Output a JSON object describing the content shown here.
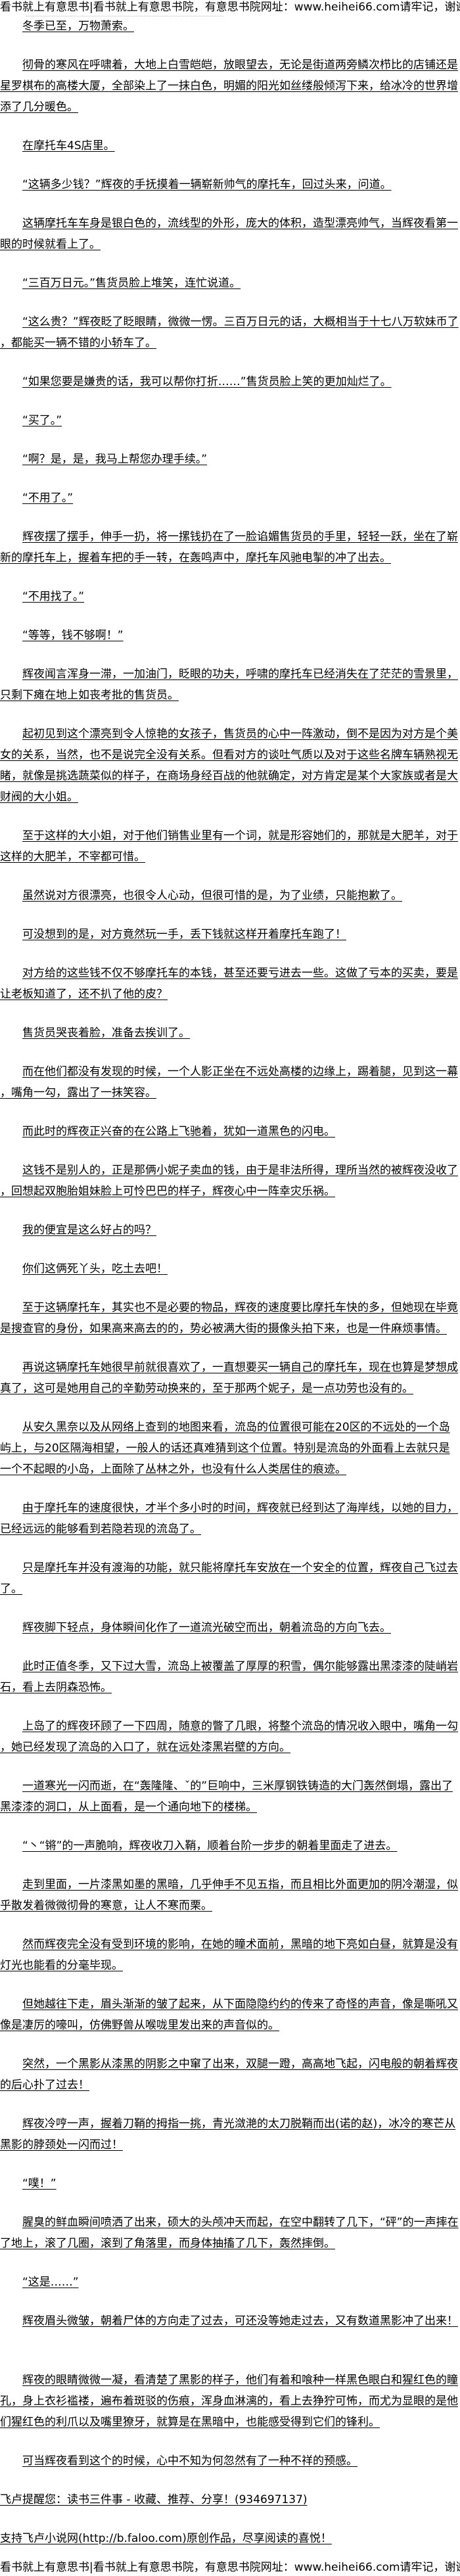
{
  "header": {
    "notice": "看书就上有意思书|看书就上有意思书院，有意思书院网址：www.heihei66.com请牢记，谢谢"
  },
  "paragraphs": [
    {
      "text": "冬季已至，万物萧索。"
    },
    {
      "text": "彻骨的寒风在呼啸着，大地上白雪皑皑，放眼望去，无论是街道两旁鳞次栉比的店铺还是星罗棋布的高楼大厦，全部染上了一抹白色，明媚的阳光如丝缕般倾泻下来，给冰冷的世界增添了几分暖色。"
    },
    {
      "text": "在摩托车4S店里。"
    },
    {
      "text": "“这辆多少钱？”辉夜的手抚摸着一辆崭新帅气的摩托车，回过头来，问道。"
    },
    {
      "text": "这辆摩托车车身是银白色的，流线型的外形，庞大的体积，造型漂亮帅气，当辉夜看第一眼的时候就看上了。"
    },
    {
      "text": "“三百万日元。”售货员脸上堆笑，连忙说道。"
    },
    {
      "text": "“这么贵？”辉夜眨了眨眼睛，微微一愣。三百万日元的话，大概相当于十七八万软妹币了，都能买一辆不错的小轿车了。"
    },
    {
      "text": "“如果您要是嫌贵的话，我可以帮你打折……”售货员脸上笑的更加灿烂了。"
    },
    {
      "text": "“买了。”"
    },
    {
      "text": "“啊？是，是，我马上帮您办理手续。”"
    },
    {
      "text": "“不用了。”"
    },
    {
      "text": "辉夜摆了摆手，伸手一扔，将一摞钱扔在了一脸谄媚售货员的手里，轻轻一跃，坐在了崭新的摩托车上，握着车把的手一转，在轰鸣声中，摩托车风驰电掣的冲了出去。"
    },
    {
      "text": "“不用找了。”"
    },
    {
      "text": "“等等，钱不够啊！”"
    },
    {
      "text": "辉夜闻言浑身一滞，一加油门，眨眼的功夫，呼啸的摩托车已经消失在了茫茫的雪景里，只剩下瘫在地上如丧考批的售货员。"
    },
    {
      "text": "起初见到这个漂亮到令人惊艳的女孩子，售货员的心中一阵激动，倒不是因为对方是个美女的关系，当然，也不是说完全没有关系。但看对方的谈吐气质以及对于这些名牌车辆熟视无睹，就像是挑选蔬菜似的样子，在商场身经百战的他就确定，对方肯定是某个大家族或者是大财阀的大小姐。"
    },
    {
      "text": "至于这样的大小姐，对于他们销售业里有一个词，就是形容她们的，那就是大肥羊，对于这样的大肥羊，不宰都可惜。"
    },
    {
      "text": "虽然说对方很漂亮，也很令人心动，但很可惜的是，为了业绩，只能抱歉了。"
    },
    {
      "text": "可没想到的是，对方竟然玩一手，丢下钱就这样开着摩托车跑了！"
    },
    {
      "text": "对方给的这些钱不仅不够摩托车的本钱，甚至还要亏进去一些。这做了亏本的买卖，要是让老板知道了，还不扒了他的皮？"
    },
    {
      "text": "售货员哭丧着脸，准备去挨训了。"
    },
    {
      "text": "而在他们都没有发现的时候，一个人影正坐在不远处高楼的边缘上，踢着腿，见到这一幕，嘴角一勾，露出了一抹笑容。"
    },
    {
      "text": "而此时的辉夜正兴奋的在公路上飞驰着，犹如一道黑色的闪电。"
    },
    {
      "text": "这钱不是别人的，正是那俩小妮子卖血的钱，由于是非法所得，理所当然的被辉夜没收了，回想起双胞胎姐妹脸上可怜巴巴的样子，辉夜心中一阵幸灾乐祸。"
    },
    {
      "text": "我的便宜是这么好占的吗？"
    },
    {
      "text": "你们这俩死丫头，吃土去吧！"
    },
    {
      "text": "至于这辆摩托车，其实也不是必要的物品，辉夜的速度要比摩托车快的多，但她现在毕竟是搜查官的身份，如果高来高去的的，势必被满大街的摄像头拍下来，也是一件麻烦事情。"
    },
    {
      "text": "再说这辆摩托车她很早前就很喜欢了，一直想要买一辆自己的摩托车，现在也算是梦想成真了，这可是她用自己的辛勤劳动换来的，至于那两个妮子，是一点功劳也没有的。"
    },
    {
      "text": "从安久黑奈以及从网络上查到的地图来看，流岛的位置很可能在20区的不远处的一个岛屿上，与20区隔海相望，一般人的话还真难猜到这个位置。特别是流岛的外面看上去就只是一个不起眼的小岛，上面除了丛林之外，也没有什么人类居住的痕迹。"
    },
    {
      "text": "由于摩托车的速度很快，才半个多小时的时间，辉夜就已经到达了海岸线，以她的目力，已经远远的能够看到若隐若现的流岛了。"
    },
    {
      "text": "只是摩托车并没有渡海的功能，就只能将摩托车安放在一个安全的位置，辉夜自己飞过去了。"
    },
    {
      "text": "辉夜脚下轻点，身体瞬间化作了一道流光破空而出，朝着流岛的方向飞去。"
    },
    {
      "text": "此时正值冬季，又下过大雪，流岛上被覆盖了厚厚的积雪，偶尔能够露出黑漆漆的陡峭岩石，看上去阴森恐怖。"
    },
    {
      "text": "上岛了的辉夜环顾了一下四周，随意的瞥了几眼，将整个流岛的情况收入眼中，嘴角一勾，她已经发现了流岛的入口了，就在远处漆黑岩壁的方向。"
    },
    {
      "text": "一道寒光一闪而逝，在“轰隆隆、ˇ的”巨响中，三米厚钢铁铸造的大门轰然倒塌，露出了黑漆漆的洞口，从上面看，是一个通向地下的楼梯。"
    },
    {
      "text": "“丶“锵”的一声脆响，辉夜收刀入鞘，顺着台阶一步步的朝着里面走了进去。"
    },
    {
      "text": "走到里面，一片漆黑如墨的黑暗，几乎伸手不见五指，而且相比外面更加的阴冷潮湿，似乎散发着微微彻骨的寒意，让人不寒而栗。"
    },
    {
      "text": "然而辉夜完全没有受到环境的影响，在她的瞳术面前，黑暗的地下亮如白昼，就算是没有灯光也能看的分毫毕现。"
    },
    {
      "text": "但她越往下走，眉头渐渐的皱了起来，从下面隐隐约约的传来了奇怪的声音，像是嘶吼又像是凄厉的嚎叫，仿佛野兽从喉咙里发出来的声音似的。"
    },
    {
      "text": "突然，一个黑影从漆黑的阴影之中窜了出来，双腿一蹬，高高地飞起，闪电般的朝着辉夜的后心扑了过去！"
    },
    {
      "text": "辉夜冷哼一声，握着刀鞘的拇指一挑，青光潋滟的太刀脱鞘而出(诺的赵)，冰冷的寒芒从黑影的脖颈处一闪而过！"
    },
    {
      "text": "“噗！”"
    },
    {
      "text": "腥臭的鲜血瞬间喷洒了出来，硕大的头颅冲天而起，在空中翻转了几下，“砰”的一声摔在了地上，滚了几圈，滚到了角落里，而身体抽搐了几下，轰然摔倒。"
    },
    {
      "text": "“这是……”"
    },
    {
      "text": "辉夜眉头微皱，朝着尸体的方向走了过去，可还没等她走过去，又有数道黑影冲了出来！"
    },
    {
      "text": "辉夜的眼睛微微一凝，看清楚了黑影的样子，他们有着和喰种一样黑色眼白和猩红色的瞳孔，身上衣衫褴褛，遍布着斑驳的伤痕，浑身血淋漓的，看上去狰狞可怖，而尤为显眼的是他们猩红色的利爪以及嘴里獠牙，就算是在黑暗中，也能感受得到它们的锋利。"
    },
    {
      "text": "可当辉夜看到这个的时候，心中不知为何忽然有了一种不祥的预感。"
    }
  ],
  "footer": {
    "reminder": "飞卢提醒您：读书三件事 - 收藏、推荐、分享！(934697137)",
    "support": "支持飞卢小说网(http://b.faloo.com)原创作品，尽享阅读的喜悦！",
    "notice": "看书就上有意思书|看书就上有意思书院，有意思书院网址：www.heihei66.com请牢记，谢谢"
  }
}
